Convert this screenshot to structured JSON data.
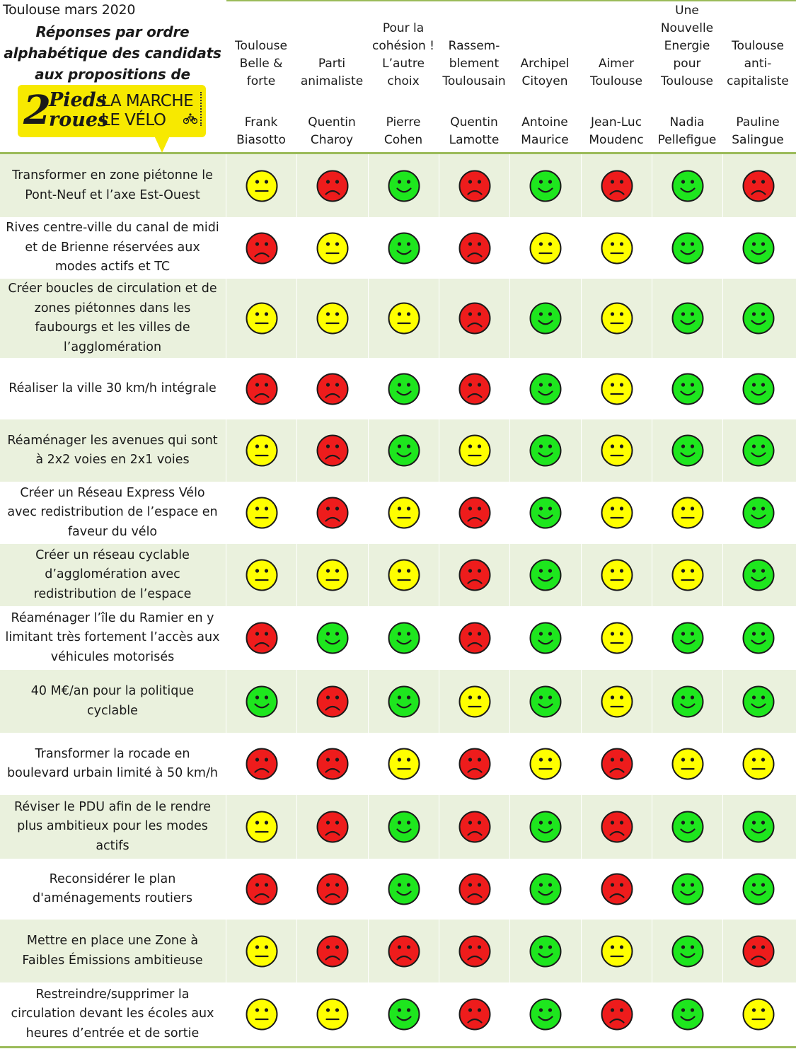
{
  "header": {
    "context": "Toulouse mars 2020",
    "subtitle_lines": [
      "Réponses par ordre",
      "alphabétique des candidats",
      "aux propositions de"
    ],
    "logo": {
      "digit": "2",
      "word_top": "Pieds",
      "word_bottom": "roues",
      "line_top": "LA MARCHE",
      "line_bottom": "LE VÉLO"
    }
  },
  "candidates": [
    {
      "party_lines": [
        "Toulouse",
        "Belle &",
        "forte"
      ],
      "name_lines": [
        "Frank",
        "Biasotto"
      ]
    },
    {
      "party_lines": [
        "Parti",
        "animaliste"
      ],
      "name_lines": [
        "Quentin",
        "Charoy"
      ]
    },
    {
      "party_lines": [
        "Pour la",
        "cohésion !",
        "L’autre",
        "choix"
      ],
      "name_lines": [
        "Pierre",
        "Cohen"
      ]
    },
    {
      "party_lines": [
        "Rassem-",
        "blement",
        "Toulousain"
      ],
      "name_lines": [
        "Quentin",
        "Lamotte"
      ]
    },
    {
      "party_lines": [
        "Archipel",
        "Citoyen"
      ],
      "name_lines": [
        "Antoine",
        "Maurice"
      ]
    },
    {
      "party_lines": [
        "Aimer",
        "Toulouse"
      ],
      "name_lines": [
        "Jean-Luc",
        "Moudenc"
      ]
    },
    {
      "party_lines": [
        "Une",
        "Nouvelle",
        "Energie",
        "pour",
        "Toulouse"
      ],
      "name_lines": [
        "Nadia",
        "Pellefigue"
      ]
    },
    {
      "party_lines": [
        "Toulouse",
        "anti-",
        "capitaliste"
      ],
      "name_lines": [
        "Pauline",
        "Salingue"
      ]
    }
  ],
  "legend_colors": {
    "favorable": "#1ee61e",
    "neutral": "#ffff00",
    "opposed": "#ee1c1c"
  },
  "propositions": [
    {
      "lines": [
        "Transformer en zone piétonne le",
        "Pont-Neuf et l’axe Est-Ouest"
      ],
      "answers": [
        "neutral",
        "opposed",
        "favorable",
        "opposed",
        "favorable",
        "opposed",
        "favorable",
        "opposed"
      ]
    },
    {
      "lines": [
        "Rives centre-ville du canal de midi",
        "et de Brienne réservées aux",
        "modes actifs et TC"
      ],
      "answers": [
        "opposed",
        "neutral",
        "favorable",
        "opposed",
        "neutral",
        "neutral",
        "favorable",
        "favorable"
      ]
    },
    {
      "lines": [
        "Créer boucles de circulation et de",
        "zones piétonnes dans les",
        "faubourgs et les villes de",
        "l’agglomération"
      ],
      "answers": [
        "neutral",
        "neutral",
        "neutral",
        "opposed",
        "favorable",
        "neutral",
        "favorable",
        "favorable"
      ]
    },
    {
      "lines": [
        "Réaliser la ville 30 km/h intégrale"
      ],
      "answers": [
        "opposed",
        "opposed",
        "favorable",
        "opposed",
        "favorable",
        "neutral",
        "favorable",
        "favorable"
      ]
    },
    {
      "lines": [
        "Réaménager les avenues qui sont",
        "à 2x2 voies en 2x1 voies"
      ],
      "answers": [
        "neutral",
        "opposed",
        "favorable",
        "neutral",
        "favorable",
        "neutral",
        "favorable",
        "favorable"
      ]
    },
    {
      "lines": [
        "Créer un Réseau Express Vélo",
        "avec  redistribution de l’espace en",
        "faveur du vélo"
      ],
      "answers": [
        "neutral",
        "opposed",
        "neutral",
        "opposed",
        "favorable",
        "neutral",
        "neutral",
        "favorable"
      ]
    },
    {
      "lines": [
        "Créer un réseau cyclable",
        "d’agglomération avec",
        "redistribution de l’espace"
      ],
      "answers": [
        "neutral",
        "neutral",
        "neutral",
        "opposed",
        "favorable",
        "neutral",
        "neutral",
        "favorable"
      ]
    },
    {
      "lines": [
        "Réaménager l’île du Ramier en y",
        "limitant très fortement l’accès aux",
        "véhicules motorisés"
      ],
      "answers": [
        "opposed",
        "favorable",
        "favorable",
        "opposed",
        "favorable",
        "neutral",
        "favorable",
        "favorable"
      ]
    },
    {
      "lines": [
        "40 M€/an pour la politique",
        "cyclable"
      ],
      "answers": [
        "favorable",
        "opposed",
        "favorable",
        "neutral",
        "favorable",
        "neutral",
        "favorable",
        "favorable"
      ]
    },
    {
      "lines": [
        "Transformer la rocade en",
        "boulevard urbain limité à 50 km/h"
      ],
      "answers": [
        "opposed",
        "opposed",
        "neutral",
        "opposed",
        "neutral",
        "opposed",
        "neutral",
        "neutral"
      ]
    },
    {
      "lines": [
        "Réviser le PDU afin de le rendre",
        "plus ambitieux pour les modes",
        "actifs"
      ],
      "answers": [
        "neutral",
        "opposed",
        "favorable",
        "opposed",
        "favorable",
        "opposed",
        "favorable",
        "favorable"
      ]
    },
    {
      "lines": [
        "Reconsidérer le plan",
        "d'aménagements routiers"
      ],
      "answers": [
        "opposed",
        "opposed",
        "favorable",
        "opposed",
        "favorable",
        "opposed",
        "favorable",
        "favorable"
      ]
    },
    {
      "lines": [
        "Mettre en place une Zone à",
        "Faibles Émissions ambitieuse"
      ],
      "answers": [
        "neutral",
        "opposed",
        "opposed",
        "opposed",
        "favorable",
        "neutral",
        "favorable",
        "opposed"
      ]
    },
    {
      "lines": [
        "Restreindre/supprimer la",
        "circulation devant les écoles aux",
        "heures d’entrée et de sortie"
      ],
      "answers": [
        "neutral",
        "neutral",
        "favorable",
        "opposed",
        "favorable",
        "opposed",
        "favorable",
        "neutral"
      ]
    }
  ]
}
